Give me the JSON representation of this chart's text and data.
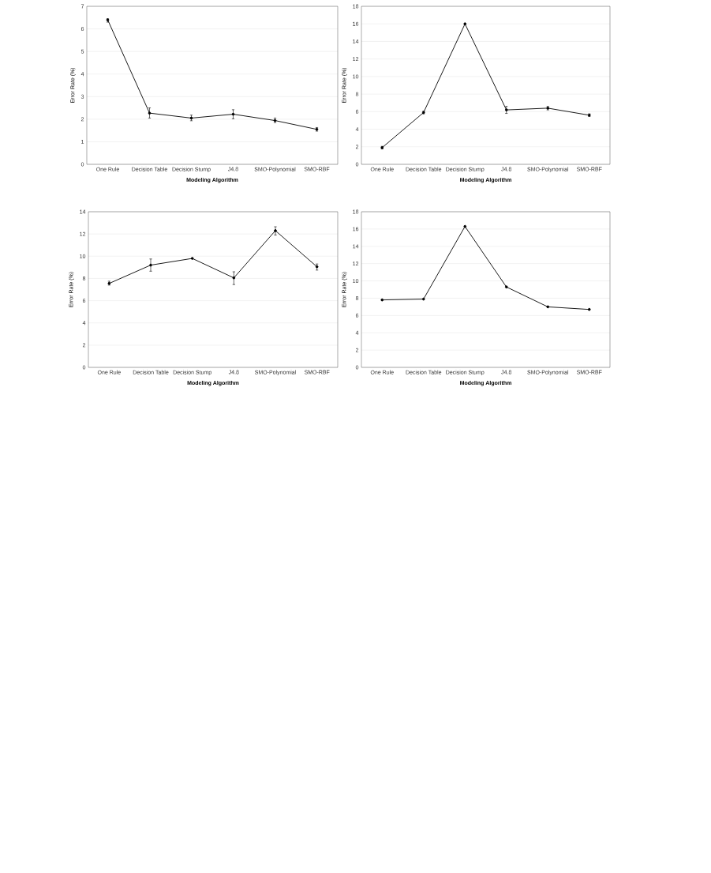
{
  "chart_data": [
    {
      "type": "line",
      "xlabel": "Modeling Algorithm",
      "ylabel": "Error Rate (%)",
      "categories": [
        "One Rule",
        "Decision Table",
        "Decision Stump",
        "J4.8",
        "SMO-Polynomial",
        "SMO-RBF"
      ],
      "values": [
        6.4,
        2.27,
        2.05,
        2.22,
        1.94,
        1.55
      ],
      "errors": [
        [
          6.3,
          6.45
        ],
        [
          2.05,
          2.5
        ],
        [
          1.93,
          2.18
        ],
        [
          2.02,
          2.42
        ],
        [
          1.85,
          2.05
        ],
        [
          1.47,
          1.63
        ]
      ],
      "color": "#000000",
      "marker": "circle",
      "ylim": [
        0,
        7
      ],
      "yticks": [
        0,
        1,
        2,
        3,
        4,
        5,
        6,
        7
      ],
      "grid": "y"
    },
    {
      "type": "line",
      "xlabel": "Modeling Algorithm",
      "ylabel": "Error Rate (%)",
      "categories": [
        "One Rule",
        "Decision Table",
        "Decision Stump",
        "J4.8",
        "SMO-Polynomial",
        "SMO-RBF"
      ],
      "values": [
        1.9,
        5.9,
        16,
        6.2,
        6.4,
        5.6
      ],
      "errors": [
        0.15,
        0.15,
        null,
        [
          5.8,
          6.6
        ],
        0.2,
        0.15
      ],
      "color": "#000000",
      "marker": "circle",
      "ylim": [
        0,
        18
      ],
      "yticks": [
        0,
        2,
        4,
        6,
        8,
        10,
        12,
        14,
        16,
        18
      ],
      "grid": "y"
    },
    {
      "type": "line",
      "xlabel": "Modeling Algorithm",
      "ylabel": "Error Rate (%)",
      "categories": [
        "One Rule",
        "Decision Table",
        "Decision Stump",
        "J4.8",
        "SMO-Polynomial",
        "SMO-RBF"
      ],
      "values": [
        7.55,
        9.2,
        9.8,
        8.05,
        12.3,
        9.05
      ],
      "errors": [
        [
          7.4,
          7.75
        ],
        [
          8.65,
          9.75
        ],
        null,
        [
          7.45,
          8.6
        ],
        [
          11.9,
          12.65
        ],
        [
          8.75,
          9.3
        ]
      ],
      "color": "#000000",
      "marker": "circle",
      "ylim": [
        0,
        14
      ],
      "yticks": [
        0,
        2,
        4,
        6,
        8,
        10,
        12,
        14
      ],
      "grid": "y"
    },
    {
      "type": "line",
      "xlabel": "Modeling Algorithm",
      "ylabel": "Error Rate (%)",
      "categories": [
        "One Rule",
        "Decision Table",
        "Decision Stump",
        "J4.8",
        "SMO-Polynomial",
        "SMO-RBF"
      ],
      "values": [
        7.8,
        7.9,
        16.3,
        9.3,
        7.0,
        6.7
      ],
      "color": "#000000",
      "marker": "circle",
      "ylim": [
        0,
        18
      ],
      "yticks": [
        0,
        2,
        4,
        6,
        8,
        10,
        12,
        14,
        16,
        18
      ],
      "grid": "y"
    }
  ]
}
